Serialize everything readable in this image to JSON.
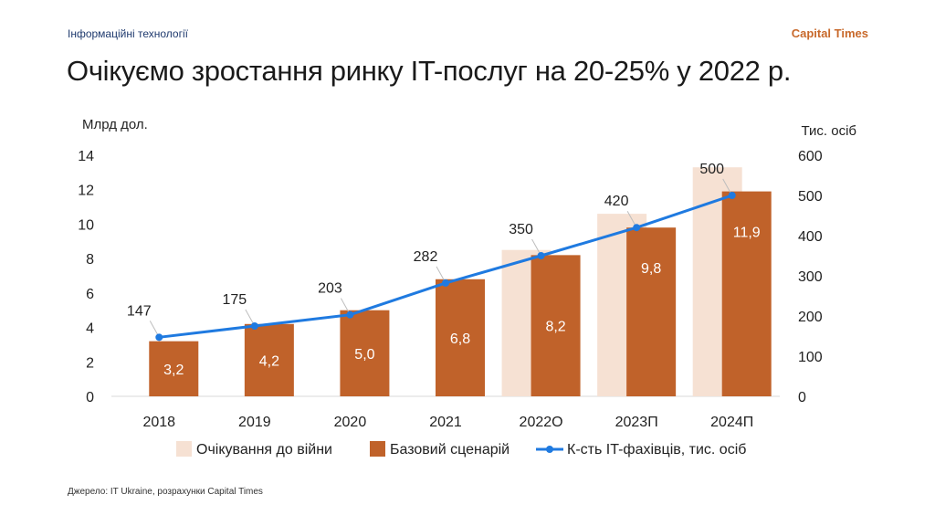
{
  "header": {
    "section": "Інформаційні технології",
    "brand": "Capital Times",
    "title": "Очікуємо зростання ринку IT-послуг на 20-25% у 2022 р."
  },
  "footer": {
    "source": "Джерело: IT Ukraine, розрахунки Capital Times"
  },
  "colors": {
    "expected": "#f6e1d3",
    "base": "#c0622a",
    "line": "#1f7ae0",
    "axis": "#d9d9d9"
  },
  "chart_data": {
    "type": "bar",
    "categories": [
      "2018",
      "2019",
      "2020",
      "2021",
      "2022О",
      "2023П",
      "2024П"
    ],
    "series": [
      {
        "name": "Очікування до війни",
        "type": "bar",
        "axis": "left",
        "values": [
          null,
          null,
          null,
          null,
          8.5,
          10.6,
          13.3
        ]
      },
      {
        "name": "Базовий сценарій",
        "type": "bar",
        "axis": "left",
        "values": [
          3.2,
          4.2,
          5.0,
          6.8,
          8.2,
          9.8,
          11.9
        ],
        "labels": [
          "3,2",
          "4,2",
          "5,0",
          "6,8",
          "8,2",
          "9,8",
          "11,9"
        ]
      },
      {
        "name": "К-сть IT-фахівців, тис. осіб",
        "type": "line",
        "axis": "right",
        "values": [
          147,
          175,
          203,
          282,
          350,
          420,
          500
        ],
        "labels": [
          "147",
          "175",
          "203",
          "282",
          "350",
          "420",
          "500"
        ]
      }
    ],
    "ylabel": "Млрд дол.",
    "ylim": [
      0,
      14
    ],
    "yticks": [
      "0",
      "2",
      "4",
      "6",
      "8",
      "10",
      "12",
      "14"
    ],
    "y2label": "Тис. осіб",
    "y2lim": [
      0,
      600
    ],
    "y2ticks": [
      "0",
      "100",
      "200",
      "300",
      "400",
      "500",
      "600"
    ],
    "legend_position": "bottom"
  }
}
